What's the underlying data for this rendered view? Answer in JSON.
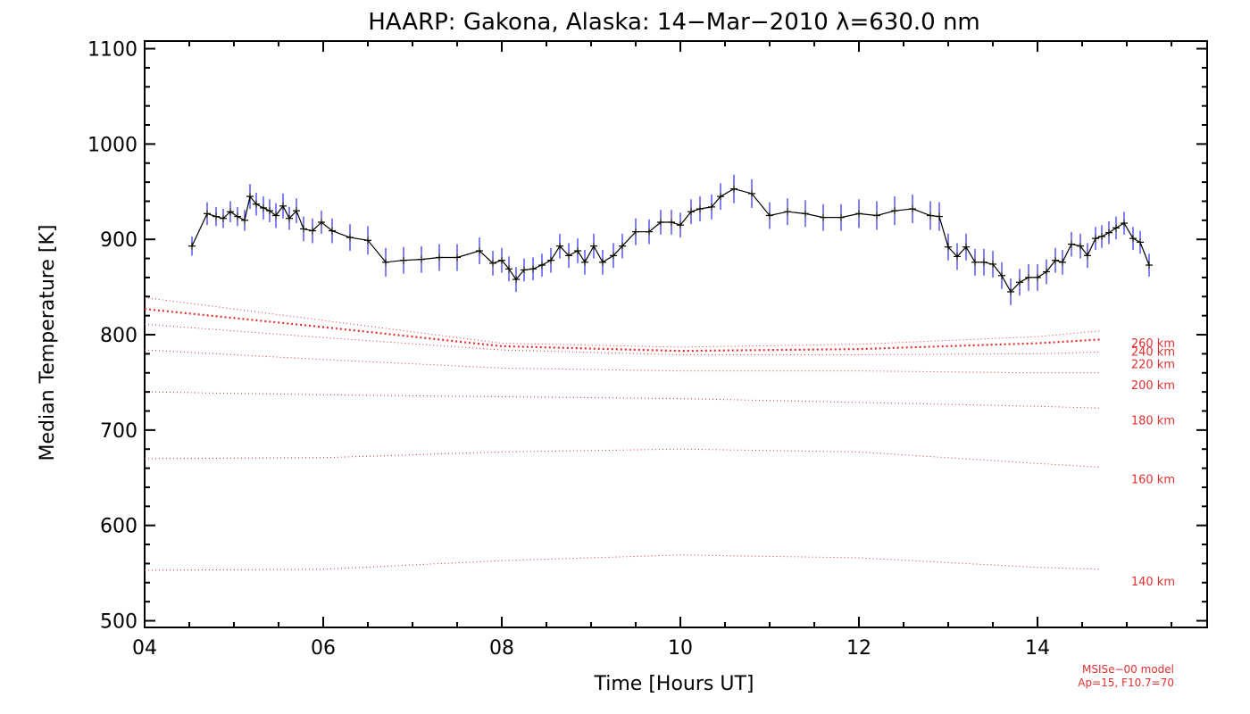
{
  "chart_data": {
    "type": "line",
    "title": "HAARP: Gakona,  Alaska: 14−Mar−2010 λ=630.0 nm",
    "xlabel": "Time [Hours UT]",
    "ylabel": "Median Temperature [K]",
    "xlim": [
      4,
      15.9
    ],
    "ylim": [
      493,
      1108
    ],
    "x_ticks": [
      4,
      6,
      8,
      10,
      12,
      14
    ],
    "x_tick_labels": [
      "04",
      "06",
      "08",
      "10",
      "12",
      "14"
    ],
    "y_ticks": [
      500,
      600,
      700,
      800,
      900,
      1000,
      1100
    ],
    "y_tick_labels": [
      "500",
      "600",
      "700",
      "800",
      "900",
      "1000",
      "1100"
    ],
    "grid": false,
    "measured": {
      "color": "#000000",
      "errorbar_color": "#0000ff",
      "x": [
        4.53,
        4.7,
        4.8,
        4.88,
        4.96,
        5.04,
        5.12,
        5.18,
        5.25,
        5.33,
        5.4,
        5.47,
        5.55,
        5.62,
        5.7,
        5.78,
        5.88,
        5.98,
        6.1,
        6.3,
        6.5,
        6.7,
        6.9,
        7.1,
        7.3,
        7.5,
        7.75,
        7.9,
        8.0,
        8.08,
        8.16,
        8.25,
        8.35,
        8.45,
        8.55,
        8.65,
        8.75,
        8.85,
        8.93,
        9.03,
        9.13,
        9.25,
        9.35,
        9.5,
        9.65,
        9.78,
        9.9,
        10.0,
        10.12,
        10.22,
        10.35,
        10.45,
        10.6,
        10.8,
        11.0,
        11.2,
        11.4,
        11.6,
        11.8,
        12.0,
        12.2,
        12.4,
        12.6,
        12.8,
        12.9,
        13.0,
        13.1,
        13.2,
        13.3,
        13.4,
        13.5,
        13.6,
        13.7,
        13.8,
        13.9,
        14.0,
        14.1,
        14.2,
        14.28,
        14.38,
        14.48,
        14.56,
        14.65,
        14.72,
        14.8,
        14.88,
        14.97,
        15.07,
        15.15,
        15.25
      ],
      "y": [
        893,
        927,
        924,
        922,
        929,
        924,
        920,
        945,
        937,
        933,
        930,
        925,
        935,
        922,
        930,
        911,
        909,
        918,
        909,
        902,
        899,
        876,
        878,
        879,
        881,
        881,
        888,
        875,
        878,
        869,
        858,
        868,
        869,
        873,
        878,
        893,
        883,
        888,
        876,
        893,
        876,
        883,
        893,
        908,
        908,
        918,
        918,
        915,
        929,
        932,
        934,
        945,
        953,
        948,
        925,
        929,
        927,
        923,
        923,
        927,
        925,
        930,
        932,
        925,
        924,
        892,
        882,
        892,
        876,
        876,
        874,
        862,
        845,
        855,
        860,
        860,
        866,
        878,
        876,
        895,
        893,
        883,
        901,
        903,
        907,
        912,
        917,
        901,
        897,
        873
      ],
      "err": [
        10,
        12,
        10,
        10,
        11,
        10,
        11,
        13,
        12,
        12,
        12,
        13,
        13,
        12,
        13,
        13,
        13,
        12,
        13,
        14,
        15,
        15,
        14,
        14,
        14,
        14,
        14,
        13,
        13,
        13,
        13,
        12,
        12,
        12,
        13,
        13,
        13,
        13,
        13,
        13,
        13,
        13,
        13,
        14,
        13,
        13,
        13,
        13,
        13,
        13,
        13,
        14,
        15,
        15,
        14,
        14,
        14,
        14,
        14,
        15,
        15,
        15,
        15,
        15,
        15,
        14,
        14,
        14,
        14,
        14,
        14,
        14,
        14,
        14,
        14,
        14,
        13,
        13,
        13,
        13,
        13,
        13,
        12,
        12,
        12,
        12,
        12,
        12,
        12,
        12
      ]
    },
    "model_series": [
      {
        "name": "140 km",
        "label": "140 km",
        "x": [
          4.0,
          6.0,
          8.0,
          10.0,
          12.0,
          14.0,
          14.7
        ],
        "y": [
          553,
          554,
          563,
          569,
          566,
          556,
          554
        ]
      },
      {
        "name": "160 km",
        "label": "160 km",
        "x": [
          4.0,
          6.0,
          8.0,
          10.0,
          12.0,
          14.0,
          14.7
        ],
        "y": [
          670,
          671,
          677,
          680,
          677,
          665,
          661
        ]
      },
      {
        "name": "180 km",
        "label": "180 km",
        "x": [
          4.0,
          6.0,
          8.0,
          10.0,
          12.0,
          14.0,
          14.7
        ],
        "y": [
          740,
          737,
          735,
          733,
          729,
          725,
          723
        ]
      },
      {
        "name": "200 km",
        "label": "200 km",
        "x": [
          4.0,
          6.0,
          8.0,
          10.0,
          12.0,
          14.0,
          14.7
        ],
        "y": [
          784,
          774,
          765,
          762,
          762,
          760,
          760
        ]
      },
      {
        "name": "220 km",
        "label": "220 km",
        "x": [
          4.0,
          6.0,
          8.0,
          10.0,
          12.0,
          14.0,
          14.7
        ],
        "y": [
          811,
          797,
          784,
          779,
          779,
          780,
          782
        ]
      },
      {
        "name": "240 km",
        "label": "240 km",
        "x": [
          4.0,
          6.0,
          8.0,
          10.0,
          12.0,
          14.0,
          14.7
        ],
        "y": [
          827,
          808,
          788,
          783,
          785,
          791,
          795
        ]
      },
      {
        "name": "260 km",
        "label": "260 km",
        "x": [
          4.0,
          6.0,
          8.0,
          10.0,
          12.0,
          14.0,
          14.7
        ],
        "y": [
          839,
          815,
          791,
          787,
          790,
          798,
          804
        ]
      }
    ],
    "model_color": "#e03030",
    "model_note": [
      "MSISe−00 model",
      "Ap=15, F10.7=70"
    ]
  }
}
